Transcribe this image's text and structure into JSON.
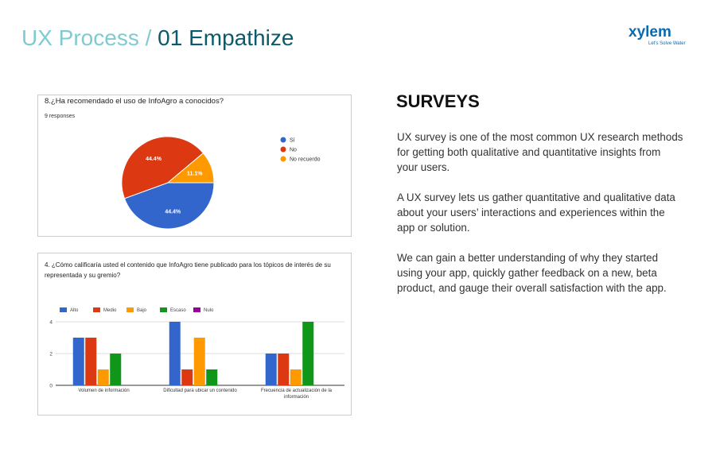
{
  "header": {
    "title_prefix": "UX Process /",
    "title_main": "01 Empathize",
    "logo": "xylem",
    "tagline": "Let's Solve Water"
  },
  "section": {
    "heading": "SURVEYS",
    "paragraphs": [
      "UX survey is one of the most common UX research methods for getting both qualitative and quantitative insights from your users.",
      "A UX survey lets us gather quantitative and qualitative data about your users’ interactions and experiences within the app or solution.",
      "We can gain a better understanding of why they started using your app, quickly gather feedback on a new, beta product, and gauge their overall satisfaction with the app."
    ]
  },
  "chart_data": [
    {
      "type": "pie",
      "title": "8.¿Ha recomendado el uso de InfoAgro a conocidos?",
      "subtitle": "9 responses",
      "categories": [
        "Sí",
        "No",
        "No recuerdo"
      ],
      "values": [
        44.4,
        44.4,
        11.1
      ],
      "value_labels": [
        "44.4%",
        "44.4%",
        "11.1%"
      ],
      "colors": [
        "#3366cc",
        "#dc3912",
        "#ff9900"
      ],
      "legend": "right"
    },
    {
      "type": "bar",
      "title": "4. ¿Cómo calificaría usted el contenido que InfoAgro tiene publicado para los tópicos de interés de su representada y su gremio?",
      "categories": [
        "Volumen de información",
        "Dificultad para ubicar un contenido",
        "Frecuencia de actualización de la información"
      ],
      "series": [
        {
          "name": "Alto",
          "color": "#3366cc",
          "values": [
            3,
            4,
            2
          ]
        },
        {
          "name": "Medio",
          "color": "#dc3912",
          "values": [
            3,
            1,
            2
          ]
        },
        {
          "name": "Bajo",
          "color": "#ff9900",
          "values": [
            1,
            3,
            1
          ]
        },
        {
          "name": "Escaso",
          "color": "#109618",
          "values": [
            2,
            1,
            4
          ]
        },
        {
          "name": "Nulo",
          "color": "#990099",
          "values": [
            0,
            0,
            0
          ]
        }
      ],
      "ylim": [
        0,
        4
      ],
      "yticks": [
        0,
        2,
        4
      ],
      "grid": true,
      "legend": "top"
    }
  ]
}
